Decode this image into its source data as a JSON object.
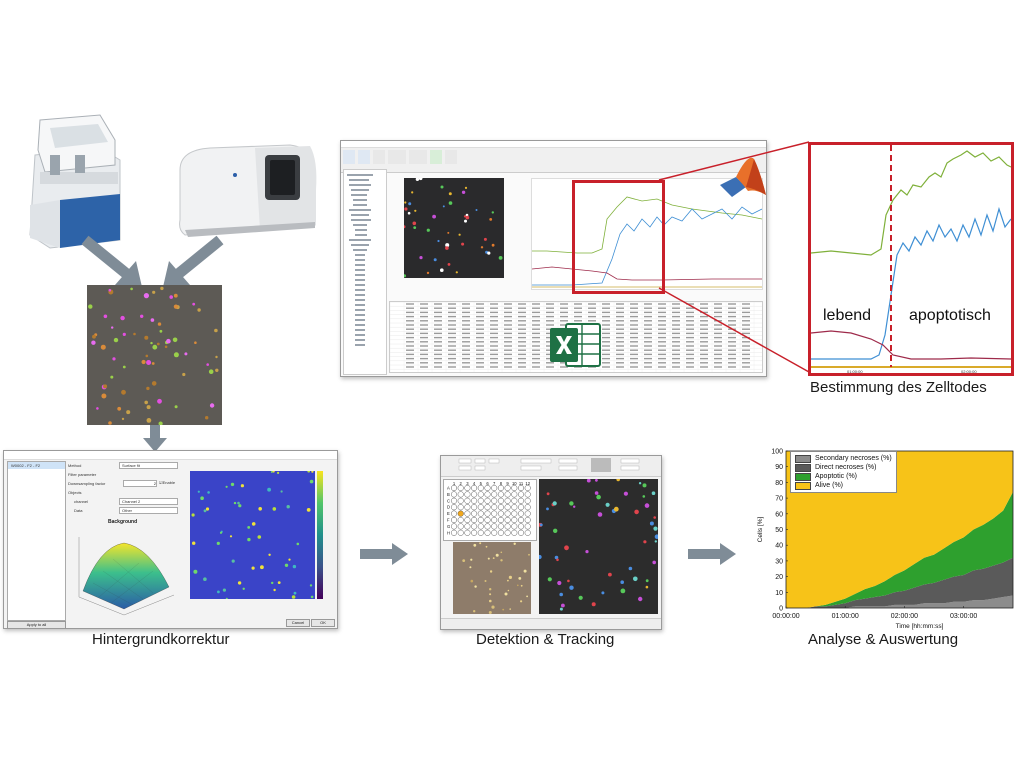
{
  "captions": {
    "zellfate": "Bestimmung des Zelltodes",
    "background": "Hintergrundkorrektur",
    "detection": "Detektion & Tracking",
    "analysis": "Analyse & Auswertung"
  },
  "zoom": {
    "label_alive": "lebend",
    "label_apoptotic": "apoptotisch",
    "tick_left": "01:00:00",
    "tick_right": "02:00:00"
  },
  "bg_window": {
    "list_item": "W0002 - F2 - F2",
    "rows": [
      {
        "label": "Method",
        "value": "Surface fit"
      },
      {
        "label": "Filter parameter",
        "value": ""
      },
      {
        "label": "Downsampling factor",
        "value": "2"
      },
      {
        "label": "Objects",
        "value": ""
      },
      {
        "label": "channel",
        "value": "Channel 2"
      },
      {
        "label": "Data",
        "value": "Other"
      }
    ],
    "enable_label": "Enable",
    "surface_title": "Background",
    "apply_button": "Apply to all",
    "cancel_button": "Cancel",
    "ok_button": "OK"
  },
  "plate": {
    "rows": [
      "A",
      "B",
      "C",
      "D",
      "E",
      "F",
      "G",
      "H"
    ],
    "cols": [
      "1",
      "2",
      "3",
      "4",
      "5",
      "6",
      "7",
      "8",
      "9",
      "10",
      "11",
      "12"
    ]
  },
  "chart_data": {
    "type": "area",
    "stacked": true,
    "x_ticks": [
      "00:00:00",
      "01:00:00",
      "02:00:00",
      "03:00:00"
    ],
    "xlabel": "Time [hh:mm:ss]",
    "ylabel": "Cells [%]",
    "ylim": [
      0,
      100
    ],
    "y_ticks": [
      "0",
      "10",
      "20",
      "30",
      "40",
      "50",
      "60",
      "70",
      "80",
      "90",
      "100"
    ],
    "legend_position": "top-left",
    "x": [
      0,
      10,
      20,
      30,
      40,
      50,
      60,
      70,
      80,
      90,
      100,
      110,
      120,
      130,
      140,
      150,
      160,
      170,
      180,
      190,
      200,
      210,
      220,
      230
    ],
    "series": [
      {
        "name": "Secondary necroses (%)",
        "color": "#8c8c8c",
        "values": [
          0,
          0,
          0,
          0,
          0,
          0,
          0,
          1,
          1,
          1,
          1,
          2,
          2,
          2,
          3,
          3,
          3,
          4,
          4,
          5,
          5,
          6,
          7,
          8
        ]
      },
      {
        "name": "Direct necroses (%)",
        "color": "#5a5a5a",
        "values": [
          0,
          0,
          0,
          1,
          1,
          2,
          3,
          4,
          5,
          6,
          7,
          8,
          9,
          11,
          12,
          13,
          15,
          16,
          17,
          19,
          20,
          21,
          22,
          24
        ]
      },
      {
        "name": "Apoptotic (%)",
        "color": "#2ea02e",
        "values": [
          0,
          0,
          0,
          0,
          1,
          2,
          3,
          4,
          6,
          7,
          9,
          11,
          13,
          15,
          17,
          18,
          20,
          22,
          24,
          26,
          28,
          30,
          33,
          42
        ]
      },
      {
        "name": "Alive (%)",
        "color": "#f7c318",
        "values": [
          100,
          100,
          100,
          99,
          98,
          96,
          94,
          91,
          88,
          86,
          83,
          79,
          76,
          72,
          68,
          66,
          62,
          58,
          55,
          50,
          47,
          43,
          38,
          26
        ]
      }
    ]
  }
}
